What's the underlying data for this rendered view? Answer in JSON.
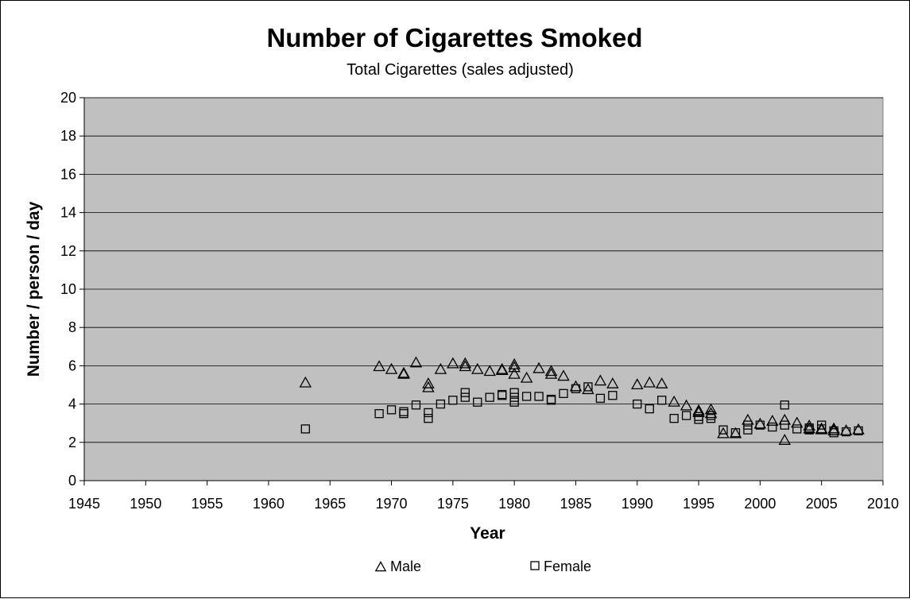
{
  "chart_data": {
    "type": "scatter",
    "title": "Number of Cigarettes Smoked",
    "subtitle": "Total Cigarettes (sales adjusted)",
    "xlabel": "Year",
    "ylabel": "Number / person / day",
    "xlim": [
      1945,
      2010
    ],
    "ylim": [
      0,
      20
    ],
    "xticks": [
      1945,
      1950,
      1955,
      1960,
      1965,
      1970,
      1975,
      1980,
      1985,
      1990,
      1995,
      2000,
      2005,
      2010
    ],
    "yticks": [
      0,
      2,
      4,
      6,
      8,
      10,
      12,
      14,
      16,
      18,
      20
    ],
    "grid": "horizontal",
    "plot_background": "#c0c0c0",
    "legend_position": "bottom",
    "series": [
      {
        "name": "Male",
        "marker": "triangle",
        "points": [
          [
            1963,
            5.1
          ],
          [
            1969,
            5.95
          ],
          [
            1970,
            5.8
          ],
          [
            1971,
            5.6
          ],
          [
            1971,
            5.55
          ],
          [
            1972,
            6.15
          ],
          [
            1973,
            5.05
          ],
          [
            1973,
            4.85
          ],
          [
            1974,
            5.8
          ],
          [
            1975,
            6.1
          ],
          [
            1976,
            6.1
          ],
          [
            1976,
            5.95
          ],
          [
            1977,
            5.8
          ],
          [
            1978,
            5.7
          ],
          [
            1979,
            5.75
          ],
          [
            1979,
            5.8
          ],
          [
            1980,
            6.05
          ],
          [
            1980,
            5.9
          ],
          [
            1980,
            5.55
          ],
          [
            1981,
            5.35
          ],
          [
            1982,
            5.85
          ],
          [
            1983,
            5.7
          ],
          [
            1983,
            5.55
          ],
          [
            1984,
            5.45
          ],
          [
            1985,
            4.9
          ],
          [
            1986,
            4.75
          ],
          [
            1987,
            5.2
          ],
          [
            1988,
            5.05
          ],
          [
            1990,
            5.0
          ],
          [
            1991,
            5.1
          ],
          [
            1992,
            5.05
          ],
          [
            1993,
            4.1
          ],
          [
            1994,
            3.9
          ],
          [
            1995,
            3.65
          ],
          [
            1995,
            3.55
          ],
          [
            1996,
            3.7
          ],
          [
            1996,
            3.5
          ],
          [
            1997,
            2.45
          ],
          [
            1998,
            2.45
          ],
          [
            1999,
            3.15
          ],
          [
            2000,
            2.95
          ],
          [
            2001,
            3.1
          ],
          [
            2002,
            3.15
          ],
          [
            2002,
            2.1
          ],
          [
            2003,
            3.0
          ],
          [
            2004,
            2.85
          ],
          [
            2004,
            2.7
          ],
          [
            2005,
            2.7
          ],
          [
            2005,
            2.65
          ],
          [
            2006,
            2.7
          ],
          [
            2006,
            2.6
          ],
          [
            2007,
            2.6
          ],
          [
            2008,
            2.65
          ]
        ]
      },
      {
        "name": "Female",
        "marker": "square",
        "points": [
          [
            1963,
            2.7
          ],
          [
            1969,
            3.5
          ],
          [
            1970,
            3.7
          ],
          [
            1971,
            3.6
          ],
          [
            1971,
            3.5
          ],
          [
            1972,
            3.95
          ],
          [
            1973,
            3.55
          ],
          [
            1973,
            3.25
          ],
          [
            1974,
            4.0
          ],
          [
            1975,
            4.2
          ],
          [
            1976,
            4.6
          ],
          [
            1976,
            4.35
          ],
          [
            1977,
            4.1
          ],
          [
            1978,
            4.35
          ],
          [
            1979,
            4.5
          ],
          [
            1979,
            4.45
          ],
          [
            1980,
            4.6
          ],
          [
            1980,
            4.35
          ],
          [
            1980,
            4.1
          ],
          [
            1981,
            4.4
          ],
          [
            1982,
            4.4
          ],
          [
            1983,
            4.25
          ],
          [
            1983,
            4.2
          ],
          [
            1984,
            4.55
          ],
          [
            1985,
            4.8
          ],
          [
            1986,
            4.9
          ],
          [
            1987,
            4.3
          ],
          [
            1988,
            4.45
          ],
          [
            1990,
            4.0
          ],
          [
            1991,
            3.75
          ],
          [
            1992,
            4.2
          ],
          [
            1993,
            3.25
          ],
          [
            1994,
            3.4
          ],
          [
            1995,
            3.35
          ],
          [
            1995,
            3.2
          ],
          [
            1996,
            3.4
          ],
          [
            1996,
            3.25
          ],
          [
            1997,
            2.65
          ],
          [
            1998,
            2.5
          ],
          [
            1999,
            2.9
          ],
          [
            1999,
            2.65
          ],
          [
            2000,
            2.9
          ],
          [
            2001,
            2.8
          ],
          [
            2002,
            3.95
          ],
          [
            2002,
            2.9
          ],
          [
            2003,
            2.7
          ],
          [
            2004,
            2.75
          ],
          [
            2004,
            2.65
          ],
          [
            2005,
            2.9
          ],
          [
            2005,
            2.7
          ],
          [
            2006,
            2.6
          ],
          [
            2006,
            2.5
          ],
          [
            2007,
            2.55
          ],
          [
            2008,
            2.6
          ]
        ]
      }
    ]
  }
}
